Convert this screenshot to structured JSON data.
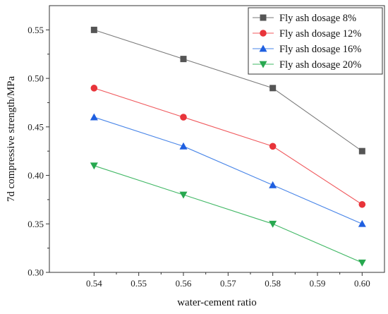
{
  "chart_data": {
    "type": "line",
    "xlabel": "water-cement ratio",
    "ylabel": "7d compressive strength/MPa",
    "xlim": [
      0.53,
      0.605
    ],
    "ylim": [
      0.3,
      0.575
    ],
    "x_ticks": [
      "0.54",
      "0.55",
      "0.56",
      "0.57",
      "0.58",
      "0.59",
      "0.60"
    ],
    "x_tick_values": [
      0.54,
      0.55,
      0.56,
      0.57,
      0.58,
      0.59,
      0.6
    ],
    "y_ticks": [
      "0.30",
      "0.35",
      "0.40",
      "0.45",
      "0.50",
      "0.55"
    ],
    "y_tick_values": [
      0.3,
      0.35,
      0.4,
      0.45,
      0.5,
      0.55
    ],
    "grid": false,
    "legend_position": "top-right",
    "x": [
      0.54,
      0.56,
      0.58,
      0.6
    ],
    "series": [
      {
        "name": "Fly ash dosage 8%",
        "values": [
          0.55,
          0.52,
          0.49,
          0.425
        ],
        "color": "#555555",
        "line_color": "#7a7a7a",
        "marker": "square"
      },
      {
        "name": "Fly ash dosage 12%",
        "values": [
          0.49,
          0.46,
          0.43,
          0.37
        ],
        "color": "#e8343a",
        "line_color": "#f05a5e",
        "marker": "circle"
      },
      {
        "name": "Fly ash dosage 16%",
        "values": [
          0.46,
          0.43,
          0.39,
          0.35
        ],
        "color": "#1f5fe0",
        "line_color": "#4a86e8",
        "marker": "triangle-up"
      },
      {
        "name": "Fly ash dosage 20%",
        "values": [
          0.41,
          0.38,
          0.35,
          0.31
        ],
        "color": "#27a84f",
        "line_color": "#42b866",
        "marker": "triangle-down"
      }
    ]
  }
}
